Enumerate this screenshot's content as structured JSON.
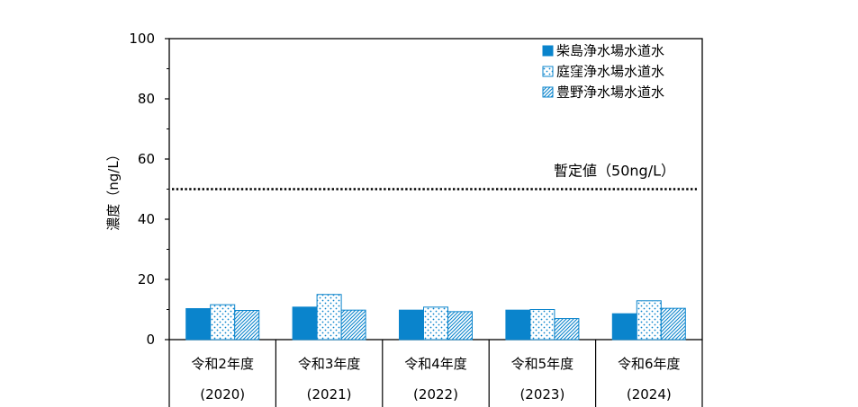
{
  "chart_data": {
    "type": "bar",
    "title": "",
    "xlabel": "",
    "ylabel": "濃度（ng/L）",
    "ylim": [
      0,
      100
    ],
    "yticks": [
      0,
      20,
      40,
      60,
      80,
      100
    ],
    "grid": false,
    "legend_position": "top-right",
    "categories": [
      {
        "name": "令和2年度",
        "year": "(2020)"
      },
      {
        "name": "令和3年度",
        "year": "(2021)"
      },
      {
        "name": "令和4年度",
        "year": "(2022)"
      },
      {
        "name": "令和5年度",
        "year": "(2023)"
      },
      {
        "name": "令和6年度",
        "year": "(2024)"
      }
    ],
    "series": [
      {
        "name": "柴島浄水場水道水",
        "values": [
          10.3,
          10.8,
          9.8,
          9.8,
          8.6
        ],
        "color": "#0a84cc",
        "pattern": "solid"
      },
      {
        "name": "庭窪浄水場水道水",
        "values": [
          11.6,
          15.0,
          10.8,
          10.0,
          12.9
        ],
        "color": "#0a84cc",
        "pattern": "dots"
      },
      {
        "name": "豊野浄水場水道水",
        "values": [
          9.7,
          9.8,
          9.3,
          7.0,
          10.4
        ],
        "color": "#0a84cc",
        "pattern": "hatch"
      }
    ],
    "reference_line": {
      "value": 50,
      "label": "暫定値（50ng/L）",
      "style": "dotted"
    }
  }
}
